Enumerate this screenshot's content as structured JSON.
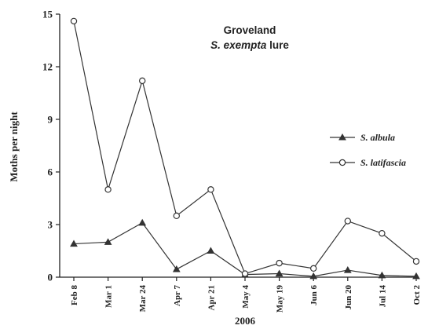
{
  "chart_data": {
    "type": "line",
    "title": "Groveland",
    "subtitle": {
      "genus": "S.",
      "species": "exempta",
      "suffix": "lure"
    },
    "xlabel": "2006",
    "ylabel": "Moths per night",
    "ylim": [
      0,
      15
    ],
    "yticks": [
      0,
      3,
      6,
      9,
      12,
      15
    ],
    "categories": [
      "Feb 8",
      "Mar 1",
      "Mar 24",
      "Apr 7",
      "Apr 21",
      "May 4",
      "May 19",
      "Jun 6",
      "Jun 20",
      "Jul 14",
      "Oct 2"
    ],
    "grid": false,
    "legend_position": "right",
    "series": [
      {
        "name": "S. albula",
        "marker": "filled-triangle",
        "color": "#333333",
        "values": [
          1.9,
          2.0,
          3.1,
          0.45,
          1.5,
          0.15,
          0.2,
          0.05,
          0.4,
          0.1,
          0.05
        ]
      },
      {
        "name": "S. latifascia",
        "marker": "open-circle",
        "color": "#333333",
        "values": [
          14.6,
          5.0,
          11.2,
          3.5,
          5.0,
          0.2,
          0.8,
          0.5,
          3.2,
          2.5,
          0.9
        ]
      }
    ]
  }
}
